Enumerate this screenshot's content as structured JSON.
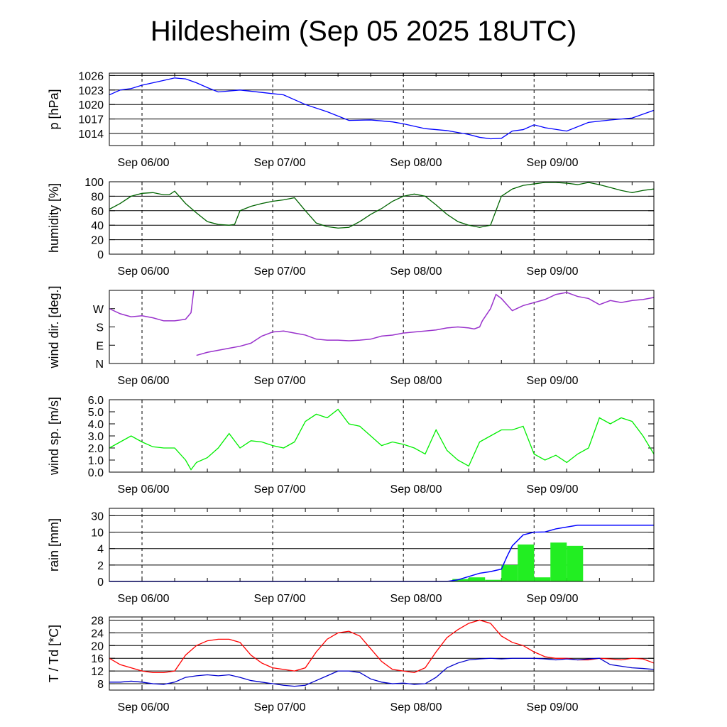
{
  "title": "Hildesheim (Sep 05 2025 18UTC)",
  "x_labels": [
    "Sep 06/00",
    "Sep 07/00",
    "Sep 08/00",
    "Sep 09/00"
  ],
  "chart_data": [
    {
      "id": "pressure",
      "type": "line",
      "ylabel": "p [hPa]",
      "yticks": [
        "1014",
        "1017",
        "1020",
        "1023",
        "1026"
      ],
      "tickvals": [
        1014,
        1017,
        1020,
        1023,
        1026
      ],
      "ylim": [
        1011.5,
        1026.5
      ],
      "grid": true,
      "color": "#0000ff",
      "x": [
        -6,
        -5,
        -4,
        -2,
        0,
        2,
        4,
        6,
        8,
        10,
        12,
        14,
        18,
        22,
        26,
        30,
        34,
        38,
        42,
        46,
        48,
        52,
        56,
        60,
        62,
        64,
        66,
        68,
        70,
        72,
        74,
        78,
        82,
        86,
        90,
        94
      ],
      "y": [
        1022,
        1022.5,
        1023,
        1023.3,
        1024,
        1024.5,
        1025,
        1025.5,
        1025.3,
        1024.5,
        1023.5,
        1022.6,
        1023,
        1022.5,
        1022,
        1020,
        1018.5,
        1016.7,
        1016.8,
        1016.4,
        1016,
        1015,
        1014.6,
        1013.8,
        1013.2,
        1012.9,
        1013,
        1014.5,
        1014.8,
        1015.8,
        1015.2,
        1014.5,
        1016.3,
        1016.8,
        1017.2,
        1018.8
      ]
    },
    {
      "id": "humidity",
      "type": "line",
      "ylabel": "humidity [%]",
      "yticks": [
        "0",
        "20",
        "40",
        "60",
        "80",
        "100"
      ],
      "tickvals": [
        0,
        20,
        40,
        60,
        80,
        100
      ],
      "ylim": [
        0,
        100
      ],
      "grid": true,
      "color": "#006400",
      "x": [
        -6,
        -4,
        -2,
        0,
        2,
        4,
        5,
        6,
        8,
        10,
        12,
        14,
        16,
        17,
        18,
        20,
        22,
        24,
        26,
        28,
        30,
        32,
        34,
        36,
        38,
        40,
        42,
        44,
        46,
        48,
        50,
        52,
        54,
        56,
        58,
        60,
        62,
        64,
        65,
        66,
        68,
        70,
        72,
        74,
        76,
        78,
        80,
        82,
        84,
        86,
        88,
        90,
        92,
        94
      ],
      "y": [
        62,
        70,
        80,
        84,
        85,
        82,
        82,
        87,
        70,
        57,
        45,
        41,
        40,
        41,
        60,
        66,
        70,
        73,
        75,
        78,
        60,
        43,
        38,
        36,
        37,
        45,
        55,
        63,
        73,
        80,
        83,
        80,
        68,
        55,
        45,
        40,
        37,
        40,
        60,
        80,
        90,
        95,
        97,
        99,
        99,
        98,
        96,
        99,
        96,
        92,
        88,
        85,
        88,
        90
      ]
    },
    {
      "id": "wind_dir",
      "type": "line",
      "ylabel": "wind dir. [deg.]",
      "yticks": [
        "N",
        "E",
        "S",
        "W"
      ],
      "tickvals": [
        0,
        90,
        180,
        270
      ],
      "ylim": [
        0,
        360
      ],
      "grid": false,
      "color": "#9932cc",
      "x": [
        -6,
        -4,
        -2,
        0,
        2,
        4,
        6,
        8,
        9,
        9.5,
        10,
        12,
        14,
        16,
        18,
        20,
        22,
        24,
        26,
        28,
        30,
        32,
        34,
        36,
        38,
        40,
        42,
        44,
        46,
        48,
        50,
        52,
        54,
        56,
        58,
        60,
        61,
        62,
        62.5,
        64,
        65,
        66,
        68,
        70,
        72,
        74,
        76,
        78,
        80,
        82,
        84,
        86,
        88,
        90,
        92,
        94
      ],
      "y": [
        270,
        245,
        230,
        235,
        225,
        210,
        210,
        218,
        250,
        360,
        40,
        55,
        65,
        75,
        85,
        100,
        135,
        155,
        160,
        150,
        140,
        120,
        115,
        115,
        112,
        115,
        120,
        135,
        140,
        150,
        155,
        160,
        165,
        175,
        180,
        175,
        170,
        180,
        210,
        270,
        340,
        320,
        260,
        285,
        300,
        315,
        340,
        350,
        330,
        320,
        290,
        310,
        300,
        310,
        315,
        325
      ]
    },
    {
      "id": "wind_speed",
      "type": "line",
      "ylabel": "wind sp. [m/s]",
      "yticks": [
        "0.0",
        "1.0",
        "2.0",
        "3.0",
        "4.0",
        "5.0",
        "6.0"
      ],
      "tickvals": [
        0,
        1,
        2,
        3,
        4,
        5,
        6
      ],
      "ylim": [
        0,
        6
      ],
      "grid": false,
      "color": "#00ee00",
      "x": [
        -6,
        -4,
        -2,
        0,
        2,
        4,
        6,
        8,
        9,
        10,
        12,
        14,
        16,
        18,
        20,
        22,
        24,
        26,
        28,
        30,
        32,
        34,
        36,
        38,
        40,
        42,
        44,
        46,
        48,
        50,
        52,
        54,
        56,
        58,
        60,
        62,
        64,
        66,
        68,
        70,
        72,
        74,
        76,
        78,
        80,
        82,
        84,
        86,
        88,
        90,
        92,
        94
      ],
      "y": [
        2.0,
        2.5,
        3.0,
        2.5,
        2.1,
        2.0,
        2.0,
        1.0,
        0.2,
        0.8,
        1.2,
        2.0,
        3.2,
        2.0,
        2.6,
        2.5,
        2.2,
        2.0,
        2.5,
        4.2,
        4.8,
        4.5,
        5.2,
        4.0,
        3.8,
        3.0,
        2.2,
        2.5,
        2.3,
        2.0,
        1.5,
        3.5,
        1.8,
        1.0,
        0.5,
        2.5,
        3.0,
        3.5,
        3.5,
        3.8,
        1.5,
        1.0,
        1.4,
        0.8,
        1.5,
        2.0,
        4.5,
        4.0,
        4.5,
        4.2,
        3.0,
        1.5
      ]
    },
    {
      "id": "rain",
      "type": "bar+line",
      "ylabel": "rain [mm]",
      "yticks": [
        "0",
        "2",
        "4",
        "10",
        "30"
      ],
      "tickvals": [
        0,
        2,
        4,
        10,
        30
      ],
      "grid": true,
      "color": "#22ee22",
      "line_color": "#0000ff",
      "bar_x": [
        58.5,
        61.5,
        64.5,
        67.5,
        70.5,
        73.5,
        76.5,
        79.5
      ],
      "bar_values": [
        0.3,
        0.5,
        0.2,
        2.0,
        5.5,
        0.5,
        6.2,
        5.0
      ],
      "cum_x": [
        -6,
        56,
        58,
        60,
        62,
        64,
        66,
        67,
        68,
        70,
        72,
        74,
        76,
        80,
        94
      ],
      "cum_y": [
        0,
        0,
        0.2,
        0.6,
        1.0,
        1.2,
        1.5,
        3.0,
        5.0,
        9.0,
        10.0,
        10.3,
        14.0,
        18.5,
        18.5
      ]
    },
    {
      "id": "temperature",
      "type": "line",
      "ylabel": "T / Td [*C]",
      "yticks": [
        "8",
        "12",
        "16",
        "20",
        "24",
        "28"
      ],
      "tickvals": [
        8,
        12,
        16,
        20,
        24,
        28
      ],
      "ylim": [
        6,
        29
      ],
      "grid": true,
      "series": [
        {
          "color": "#ff0000",
          "x": [
            -6,
            -4,
            -2,
            0,
            2,
            4,
            6,
            8,
            10,
            12,
            14,
            16,
            18,
            20,
            22,
            24,
            26,
            28,
            30,
            32,
            34,
            36,
            38,
            40,
            42,
            44,
            46,
            48,
            50,
            52,
            54,
            56,
            58,
            60,
            62,
            64,
            66,
            68,
            70,
            72,
            74,
            76,
            78,
            80,
            82,
            84,
            86,
            88,
            90,
            92,
            94
          ],
          "y": [
            16,
            14,
            13,
            12,
            11.5,
            11.5,
            12,
            17,
            20,
            21.5,
            22,
            22,
            21,
            17,
            14.5,
            13,
            12.5,
            12,
            13,
            18,
            22,
            24,
            24.5,
            23,
            19,
            15,
            12.5,
            12,
            11.5,
            13,
            18,
            22.5,
            25,
            27,
            28,
            27,
            23,
            21,
            20,
            18,
            16.5,
            16,
            16,
            15.5,
            15.5,
            16,
            15.8,
            15.5,
            16,
            15.8,
            14.5
          ]
        },
        {
          "color": "#0000cc",
          "x": [
            -6,
            -4,
            -2,
            0,
            2,
            4,
            6,
            8,
            10,
            12,
            14,
            16,
            18,
            20,
            22,
            24,
            26,
            28,
            30,
            32,
            34,
            36,
            38,
            40,
            42,
            44,
            46,
            48,
            50,
            52,
            54,
            56,
            58,
            60,
            62,
            64,
            66,
            68,
            70,
            72,
            74,
            76,
            78,
            80,
            82,
            84,
            86,
            88,
            90,
            92,
            94
          ],
          "y": [
            8.5,
            8.5,
            8.8,
            8.5,
            8,
            7.8,
            8.5,
            10,
            10.5,
            10.8,
            10.5,
            10.8,
            10,
            9,
            8.5,
            8,
            7.5,
            7.2,
            7.5,
            9,
            10.5,
            12,
            12,
            11.5,
            9.5,
            8.5,
            8,
            8.2,
            7.8,
            8,
            10,
            13,
            14.5,
            15.5,
            15.8,
            16,
            15.8,
            16,
            16,
            16,
            15.8,
            15.5,
            15.8,
            15.5,
            15.8,
            16,
            14,
            13.5,
            13,
            12.8,
            12.5
          ]
        }
      ]
    }
  ]
}
